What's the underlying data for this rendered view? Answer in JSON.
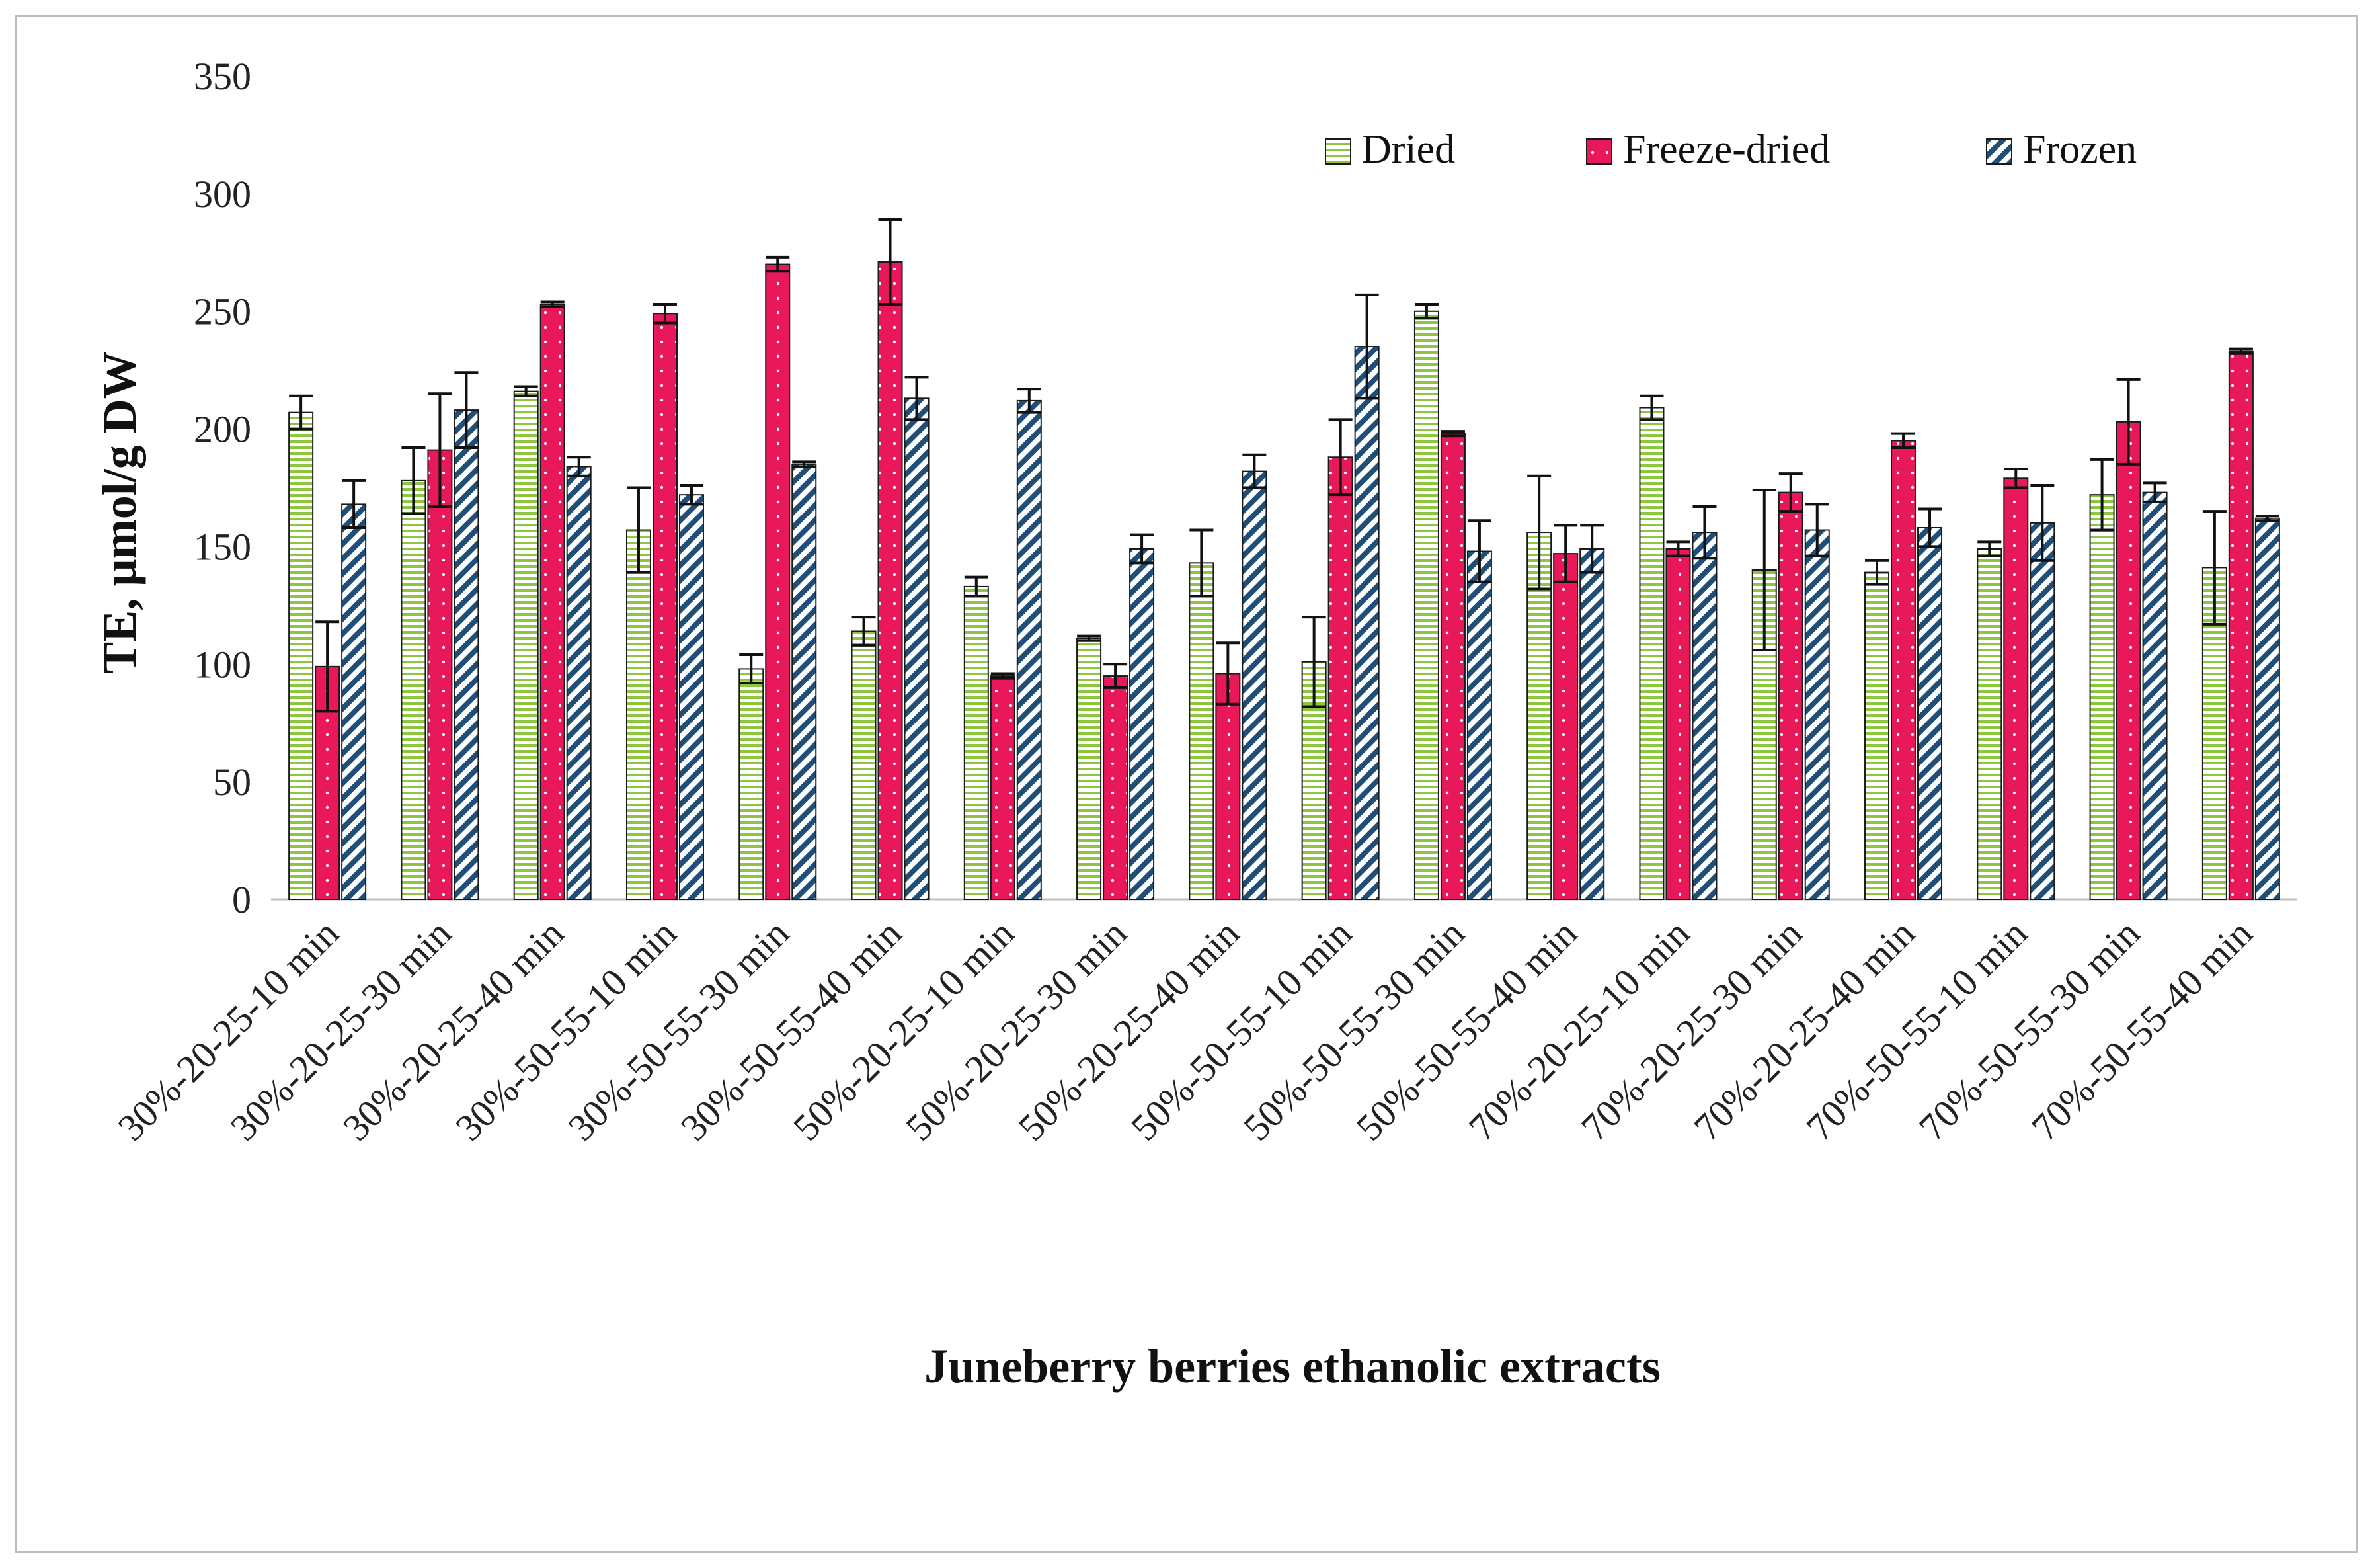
{
  "chart_data": {
    "type": "bar",
    "title": "",
    "xlabel": "Juneberry berries ethanolic extracts",
    "ylabel": "TE, µmol/g DW",
    "ylim": [
      0,
      350
    ],
    "yticks": [
      0,
      50,
      100,
      150,
      200,
      250,
      300,
      350
    ],
    "grid": false,
    "legend_position": "top-right",
    "categories": [
      "30%-20-25-10 min",
      "30%-20-25-30 min",
      "30%-20-25-40 min",
      "30%-50-55-10 min",
      "30%-50-55-30 min",
      "30%-50-55-40 min",
      "50%-20-25-10 min",
      "50%-20-25-30 min",
      "50%-20-25-40 min",
      "50%-50-55-10 min",
      "50%-50-55-30 min",
      "50%-50-55-40 min",
      "70%-20-25-10 min",
      "70%-20-25-30 min",
      "70%-20-25-40 min",
      "70%-50-55-10 min",
      "70%-50-55-30 min",
      "70%-50-55-40 min"
    ],
    "series": [
      {
        "name": "Dried",
        "color": "#8dc63f",
        "pattern": "horizontal-lines",
        "values": [
          207,
          178,
          216,
          157,
          98,
          114,
          133,
          111,
          143,
          101,
          250,
          156,
          209,
          140,
          139,
          149,
          172,
          141
        ],
        "errors": [
          7,
          14,
          2,
          18,
          6,
          6,
          4,
          1,
          14,
          19,
          3,
          24,
          5,
          34,
          5,
          3,
          15,
          24
        ]
      },
      {
        "name": "Freeze-dried",
        "color": "#e8185a",
        "pattern": "dotted-lines",
        "values": [
          99,
          191,
          253,
          249,
          270,
          271,
          95,
          95,
          96,
          188,
          198,
          147,
          149,
          173,
          195,
          179,
          203,
          233
        ],
        "errors": [
          19,
          24,
          1,
          4,
          3,
          18,
          1,
          5,
          13,
          16,
          1,
          12,
          3,
          8,
          3,
          4,
          18,
          1
        ]
      },
      {
        "name": "Frozen",
        "color": "#1f4e79",
        "pattern": "diagonal-hatch",
        "values": [
          168,
          208,
          184,
          172,
          185,
          213,
          212,
          149,
          182,
          235,
          148,
          149,
          156,
          157,
          158,
          160,
          173,
          162
        ],
        "errors": [
          10,
          16,
          4,
          4,
          1,
          9,
          5,
          6,
          7,
          22,
          13,
          10,
          11,
          11,
          8,
          16,
          4,
          1
        ]
      }
    ]
  }
}
